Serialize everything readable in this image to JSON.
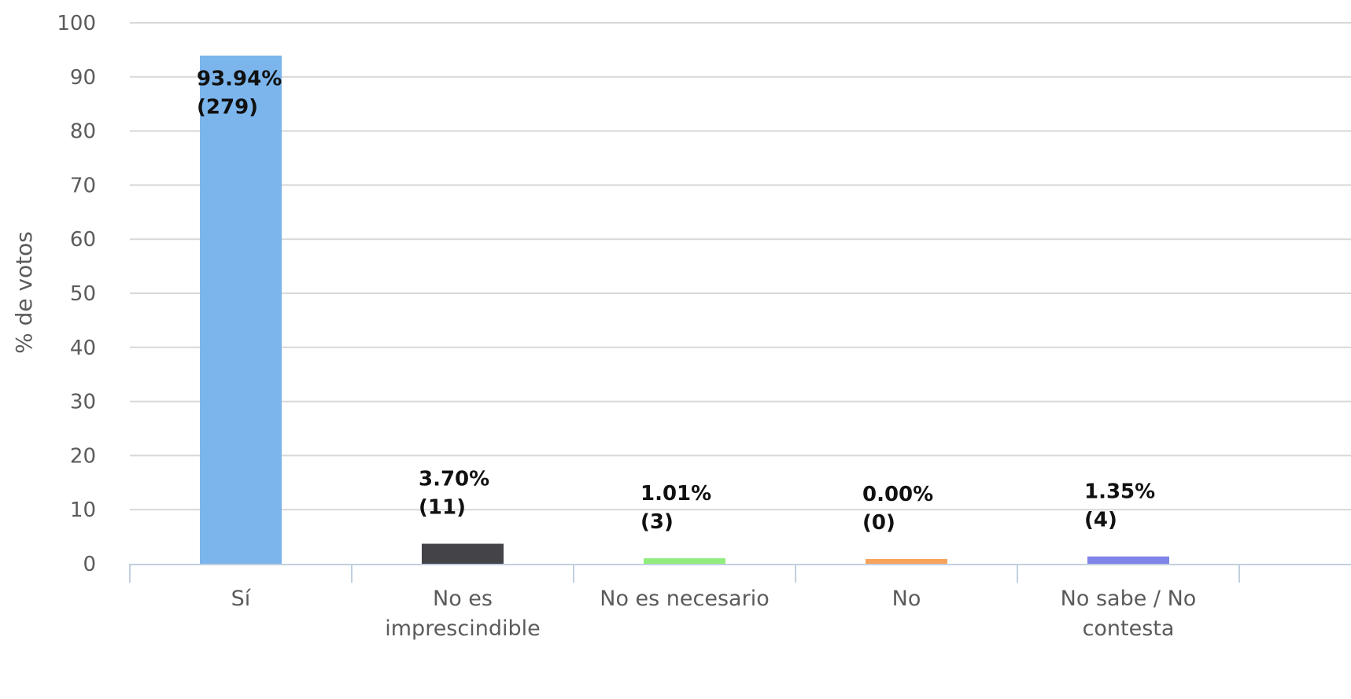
{
  "chart_data": {
    "type": "bar",
    "categories": [
      [
        "Sí"
      ],
      [
        "No es",
        "imprescindible"
      ],
      [
        "No es necesario"
      ],
      [
        "No"
      ],
      [
        "No sabe / No",
        "contesta"
      ]
    ],
    "values": [
      93.94,
      3.7,
      1.01,
      0.0,
      1.35
    ],
    "data_labels": [
      [
        "93.94%",
        "(279)"
      ],
      [
        "3.70%",
        "(11)"
      ],
      [
        "1.01%",
        "(3)"
      ],
      [
        "0.00%",
        "(0)"
      ],
      [
        "1.35%",
        "(4)"
      ]
    ],
    "colors": [
      "#7cb5ec",
      "#434348",
      "#90ed7d",
      "#f7a35c",
      "#8085e9"
    ],
    "ylabel": "% de votos",
    "ylim": [
      0,
      100
    ],
    "yticks": [
      0,
      10,
      20,
      30,
      40,
      50,
      60,
      70,
      80,
      90,
      100
    ],
    "grid": true
  }
}
